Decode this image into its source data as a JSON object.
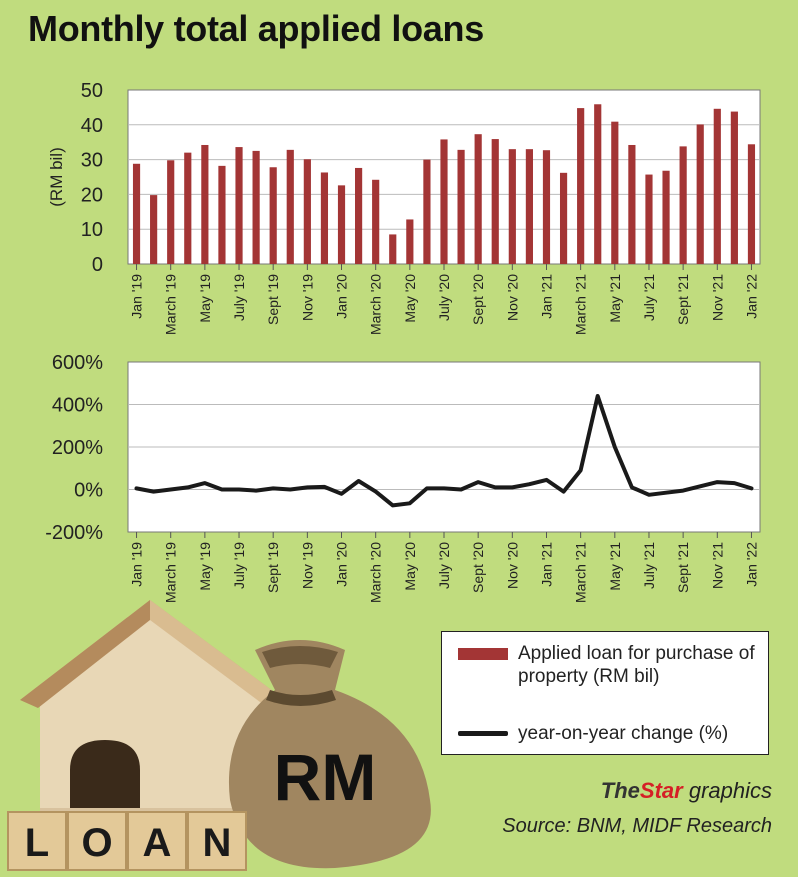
{
  "title": "Monthly total applied loans",
  "chart_data": [
    {
      "type": "bar",
      "ylabel": "(RM bil)",
      "ylim": [
        0,
        50
      ],
      "yticks": [
        "50",
        "40",
        "30",
        "20",
        "10",
        "0"
      ],
      "categories": [
        "Jan '19",
        "Feb '19",
        "March '19",
        "Apr '19",
        "May '19",
        "Jun '19",
        "July '19",
        "Aug '19",
        "Sept '19",
        "Oct '19",
        "Nov '19",
        "Dec '19",
        "Jan '20",
        "Feb '20",
        "March '20",
        "Apr '20",
        "May '20",
        "Jun '20",
        "July '20",
        "Aug '20",
        "Sept '20",
        "Oct '20",
        "Nov '20",
        "Dec '20",
        "Jan '21",
        "Feb '21",
        "March '21",
        "Apr '21",
        "May '21",
        "Jun '21",
        "July '21",
        "Aug '21",
        "Sept '21",
        "Oct '21",
        "Nov '21",
        "Dec '21",
        "Jan '22"
      ],
      "xtick_labels": [
        "Jan '19",
        "March '19",
        "May '19",
        "July '19",
        "Sept '19",
        "Nov '19",
        "Jan '20",
        "March '20",
        "May '20",
        "July '20",
        "Sept '20",
        "Nov '20",
        "Jan '21",
        "March '21",
        "May '21",
        "July '21",
        "Sept '21",
        "Nov '21",
        "Jan '22"
      ],
      "series": [
        {
          "name": "Applied loan for purchase of property (RM bil)",
          "color": "#a33535",
          "values": [
            28.8,
            19.8,
            29.8,
            32.0,
            34.2,
            28.2,
            33.6,
            32.5,
            27.8,
            32.8,
            30.1,
            26.3,
            22.6,
            27.6,
            24.2,
            8.5,
            12.8,
            30.0,
            35.8,
            32.8,
            37.3,
            35.9,
            33.0,
            33.0,
            32.7,
            26.2,
            44.8,
            45.9,
            40.9,
            34.2,
            25.7,
            26.8,
            33.8,
            40.1,
            44.6,
            43.8,
            34.4
          ]
        }
      ]
    },
    {
      "type": "line",
      "ylim": [
        -200,
        600
      ],
      "yticks": [
        "600%",
        "400%",
        "200%",
        "0%",
        "-200%"
      ],
      "xtick_labels": [
        "Jan '19",
        "March '19",
        "May '19",
        "July '19",
        "Sept '19",
        "Nov '19",
        "Jan '20",
        "March '20",
        "May '20",
        "July '20",
        "Sept '20",
        "Nov '20",
        "Jan '21",
        "March '21",
        "May '21",
        "July '21",
        "Sept '21",
        "Nov '21",
        "Jan '22"
      ],
      "series": [
        {
          "name": "year-on-year change (%)",
          "color": "#1a1a1a",
          "values": [
            5,
            -10,
            0,
            10,
            30,
            0,
            0,
            -5,
            5,
            0,
            10,
            12,
            -20,
            40,
            -10,
            -75,
            -65,
            5,
            5,
            0,
            35,
            10,
            10,
            25,
            45,
            -10,
            90,
            440,
            200,
            10,
            -25,
            -15,
            -5,
            15,
            35,
            30,
            5
          ]
        }
      ]
    }
  ],
  "legend": {
    "bar_label": "Applied loan for purchase of property (RM bil)",
    "line_label": "year-on-year change (%)"
  },
  "credit": {
    "the": "The",
    "star": "Star",
    "rest": " graphics"
  },
  "source": "Source: BNM, MIDF Research",
  "illustration": {
    "blocks": [
      "L",
      "O",
      "A",
      "N"
    ],
    "bag_text": "RM"
  }
}
